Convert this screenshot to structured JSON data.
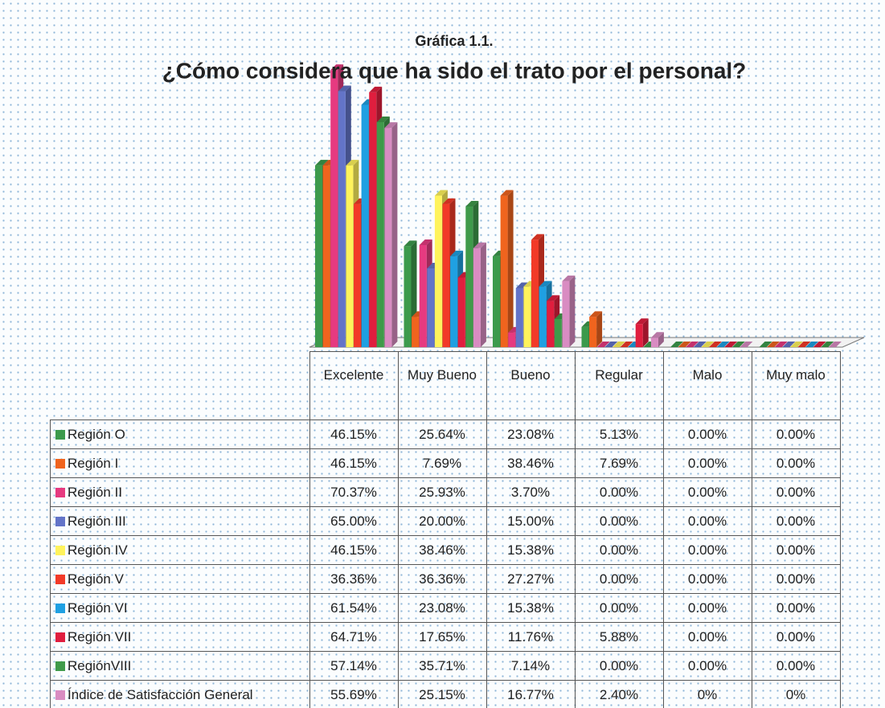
{
  "chart_data": {
    "type": "bar",
    "subtitle": "Gráfica 1.1.",
    "title": "¿Cómo considera que ha sido el trato por el personal?",
    "categories": [
      "Excelente",
      "Muy Bueno",
      "Bueno",
      "Regular",
      "Malo",
      "Muy malo"
    ],
    "series": [
      {
        "name": "Región O",
        "color": "#3c9a4c",
        "values": [
          46.15,
          25.64,
          23.08,
          5.13,
          0,
          0
        ],
        "value_labels": [
          "46.15%",
          "25.64%",
          "23.08%",
          "5.13%",
          "0.00%",
          "0.00%"
        ]
      },
      {
        "name": "Región I",
        "color": "#f0641e",
        "values": [
          46.15,
          7.69,
          38.46,
          7.69,
          0,
          0
        ],
        "value_labels": [
          "46.15%",
          "7.69%",
          "38.46%",
          "7.69%",
          "0.00%",
          "0.00%"
        ]
      },
      {
        "name": "Región II",
        "color": "#e63a80",
        "values": [
          70.37,
          25.93,
          3.7,
          0,
          0,
          0
        ],
        "value_labels": [
          "70.37%",
          "25.93%",
          "3.70%",
          "0.00%",
          "0.00%",
          "0.00%"
        ]
      },
      {
        "name": "Región III",
        "color": "#6374c8",
        "values": [
          65.0,
          20.0,
          15.0,
          0,
          0,
          0
        ],
        "value_labels": [
          "65.00%",
          "20.00%",
          "15.00%",
          "0.00%",
          "0.00%",
          "0.00%"
        ]
      },
      {
        "name": "Región IV",
        "color": "#fff35c",
        "values": [
          46.15,
          38.46,
          15.38,
          0,
          0,
          0
        ],
        "value_labels": [
          "46.15%",
          "38.46%",
          "15.38%",
          "0.00%",
          "0.00%",
          "0.00%"
        ]
      },
      {
        "name": "Región V",
        "color": "#f23a28",
        "values": [
          36.36,
          36.36,
          27.27,
          0,
          0,
          0
        ],
        "value_labels": [
          "36.36%",
          "36.36%",
          "27.27%",
          "0.00%",
          "0.00%",
          "0.00%"
        ]
      },
      {
        "name": "Región VI",
        "color": "#1fa0e2",
        "values": [
          61.54,
          23.08,
          15.38,
          0,
          0,
          0
        ],
        "value_labels": [
          "61.54%",
          "23.08%",
          "15.38%",
          "0.00%",
          "0.00%",
          "0.00%"
        ]
      },
      {
        "name": "Región VII",
        "color": "#e01e3e",
        "values": [
          64.71,
          17.65,
          11.76,
          5.88,
          0,
          0
        ],
        "value_labels": [
          "64.71%",
          "17.65%",
          "11.76%",
          "5.88%",
          "0.00%",
          "0.00%"
        ]
      },
      {
        "name": "RegiónVIII",
        "color": "#3f9a4a",
        "values": [
          57.14,
          35.71,
          7.14,
          0,
          0,
          0
        ],
        "value_labels": [
          "57.14%",
          "35.71%",
          "7.14%",
          "0.00%",
          "0.00%",
          "0.00%"
        ]
      },
      {
        "name": "Índice de Satisfacción General",
        "color": "#d98cc2",
        "values": [
          55.69,
          25.15,
          16.77,
          2.4,
          0,
          0
        ],
        "value_labels": [
          "55.69%",
          "25.15%",
          "16.77%",
          "2.40%",
          "0%",
          "0%"
        ]
      }
    ]
  }
}
